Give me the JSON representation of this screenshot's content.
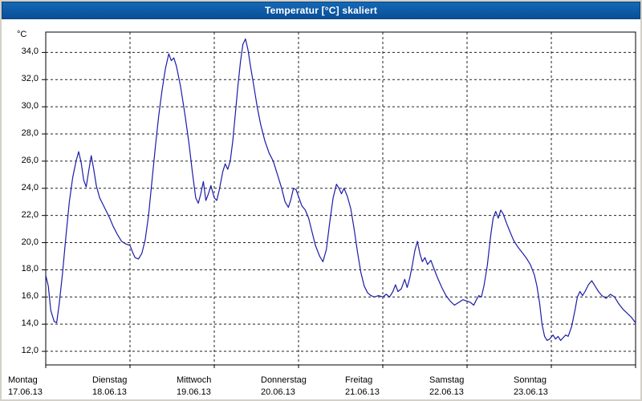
{
  "window": {
    "title": "Temperatur [°C] skaliert"
  },
  "colors": {
    "titlebar": "#0d5aa7",
    "titlebar_text": "#ffffff",
    "panel": "#ffffff",
    "frame": "#d4d0c8",
    "grid": "#222222",
    "axis": "#000000",
    "line": "#1c1ca8"
  },
  "chart_data": {
    "type": "line",
    "title": "Temperatur [°C] skaliert",
    "ylabel": "°C",
    "xlabel": "",
    "grid": "dashed",
    "legend": "none",
    "ylim": [
      11.0,
      35.5
    ],
    "y_ticks": [
      34,
      32,
      30,
      28,
      26,
      24,
      22,
      20,
      18,
      16,
      14,
      12
    ],
    "y_tick_labels": [
      "34,0",
      "32,0",
      "30,0",
      "28,0",
      "26,0",
      "24,0",
      "22,0",
      "20,0",
      "18,0",
      "16,0",
      "14,0",
      "12,0"
    ],
    "x_range_days": 7,
    "x_days": [
      {
        "name": "Montag",
        "date": "17.06.13"
      },
      {
        "name": "Dienstag",
        "date": "18.06.13"
      },
      {
        "name": "Mittwoch",
        "date": "19.06.13"
      },
      {
        "name": "Donnerstag",
        "date": "20.06.13"
      },
      {
        "name": "Freitag",
        "date": "21.06.13"
      },
      {
        "name": "Samstag",
        "date": "22.06.13"
      },
      {
        "name": "Sonntag",
        "date": "23.06.13"
      }
    ],
    "series": [
      {
        "name": "Temperatur",
        "unit": "°C",
        "color": "#1c1ca8",
        "points": [
          [
            0.0,
            17.6
          ],
          [
            0.03,
            16.8
          ],
          [
            0.06,
            15.0
          ],
          [
            0.1,
            14.2
          ],
          [
            0.13,
            14.1
          ],
          [
            0.16,
            15.5
          ],
          [
            0.2,
            17.8
          ],
          [
            0.24,
            20.5
          ],
          [
            0.28,
            23.0
          ],
          [
            0.32,
            24.8
          ],
          [
            0.36,
            26.0
          ],
          [
            0.39,
            26.7
          ],
          [
            0.42,
            25.9
          ],
          [
            0.45,
            24.6
          ],
          [
            0.48,
            24.1
          ],
          [
            0.51,
            25.3
          ],
          [
            0.54,
            26.4
          ],
          [
            0.57,
            25.4
          ],
          [
            0.6,
            24.2
          ],
          [
            0.64,
            23.3
          ],
          [
            0.68,
            22.8
          ],
          [
            0.72,
            22.3
          ],
          [
            0.76,
            21.8
          ],
          [
            0.8,
            21.2
          ],
          [
            0.85,
            20.6
          ],
          [
            0.9,
            20.1
          ],
          [
            0.95,
            19.9
          ],
          [
            1.0,
            19.8
          ],
          [
            1.03,
            19.3
          ],
          [
            1.06,
            18.9
          ],
          [
            1.1,
            18.8
          ],
          [
            1.14,
            19.2
          ],
          [
            1.18,
            20.2
          ],
          [
            1.22,
            22.0
          ],
          [
            1.26,
            24.5
          ],
          [
            1.3,
            27.0
          ],
          [
            1.34,
            29.3
          ],
          [
            1.38,
            31.2
          ],
          [
            1.42,
            32.8
          ],
          [
            1.46,
            33.9
          ],
          [
            1.49,
            33.4
          ],
          [
            1.52,
            33.6
          ],
          [
            1.55,
            33.0
          ],
          [
            1.6,
            31.5
          ],
          [
            1.65,
            29.5
          ],
          [
            1.7,
            27.3
          ],
          [
            1.74,
            25.2
          ],
          [
            1.78,
            23.3
          ],
          [
            1.81,
            22.9
          ],
          [
            1.84,
            23.6
          ],
          [
            1.87,
            24.5
          ],
          [
            1.9,
            23.1
          ],
          [
            1.93,
            23.6
          ],
          [
            1.96,
            24.2
          ],
          [
            2.0,
            23.3
          ],
          [
            2.03,
            23.1
          ],
          [
            2.06,
            23.9
          ],
          [
            2.1,
            25.2
          ],
          [
            2.13,
            25.8
          ],
          [
            2.16,
            25.4
          ],
          [
            2.19,
            26.0
          ],
          [
            2.22,
            27.5
          ],
          [
            2.25,
            29.5
          ],
          [
            2.28,
            31.5
          ],
          [
            2.31,
            33.3
          ],
          [
            2.34,
            34.6
          ],
          [
            2.37,
            35.0
          ],
          [
            2.4,
            34.2
          ],
          [
            2.43,
            33.0
          ],
          [
            2.47,
            31.5
          ],
          [
            2.51,
            30.0
          ],
          [
            2.55,
            28.7
          ],
          [
            2.6,
            27.5
          ],
          [
            2.65,
            26.6
          ],
          [
            2.7,
            26.0
          ],
          [
            2.75,
            25.0
          ],
          [
            2.8,
            24.0
          ],
          [
            2.84,
            23.0
          ],
          [
            2.88,
            22.6
          ],
          [
            2.91,
            23.2
          ],
          [
            2.94,
            24.0
          ],
          [
            2.97,
            23.9
          ],
          [
            3.0,
            23.4
          ],
          [
            3.04,
            22.7
          ],
          [
            3.08,
            22.4
          ],
          [
            3.12,
            21.8
          ],
          [
            3.16,
            20.8
          ],
          [
            3.2,
            19.8
          ],
          [
            3.25,
            19.0
          ],
          [
            3.29,
            18.6
          ],
          [
            3.33,
            19.5
          ],
          [
            3.37,
            21.5
          ],
          [
            3.41,
            23.3
          ],
          [
            3.45,
            24.3
          ],
          [
            3.48,
            24.0
          ],
          [
            3.51,
            23.6
          ],
          [
            3.54,
            24.0
          ],
          [
            3.58,
            23.4
          ],
          [
            3.62,
            22.5
          ],
          [
            3.66,
            21.0
          ],
          [
            3.7,
            19.3
          ],
          [
            3.74,
            17.8
          ],
          [
            3.78,
            16.8
          ],
          [
            3.82,
            16.3
          ],
          [
            3.86,
            16.1
          ],
          [
            3.9,
            16.0
          ],
          [
            3.95,
            16.1
          ],
          [
            4.0,
            16.0
          ],
          [
            4.04,
            16.2
          ],
          [
            4.08,
            16.0
          ],
          [
            4.12,
            16.4
          ],
          [
            4.15,
            16.9
          ],
          [
            4.18,
            16.4
          ],
          [
            4.22,
            16.6
          ],
          [
            4.26,
            17.3
          ],
          [
            4.29,
            16.7
          ],
          [
            4.32,
            17.4
          ],
          [
            4.35,
            18.3
          ],
          [
            4.38,
            19.4
          ],
          [
            4.41,
            20.1
          ],
          [
            4.44,
            19.2
          ],
          [
            4.47,
            18.6
          ],
          [
            4.5,
            18.9
          ],
          [
            4.53,
            18.4
          ],
          [
            4.57,
            18.7
          ],
          [
            4.6,
            18.2
          ],
          [
            4.65,
            17.4
          ],
          [
            4.7,
            16.7
          ],
          [
            4.75,
            16.1
          ],
          [
            4.8,
            15.7
          ],
          [
            4.85,
            15.4
          ],
          [
            4.9,
            15.6
          ],
          [
            4.95,
            15.8
          ],
          [
            5.0,
            15.7
          ],
          [
            5.04,
            15.6
          ],
          [
            5.08,
            15.4
          ],
          [
            5.11,
            15.8
          ],
          [
            5.14,
            16.1
          ],
          [
            5.17,
            16.0
          ],
          [
            5.2,
            16.8
          ],
          [
            5.24,
            18.3
          ],
          [
            5.28,
            20.5
          ],
          [
            5.31,
            21.8
          ],
          [
            5.34,
            22.3
          ],
          [
            5.37,
            21.8
          ],
          [
            5.4,
            22.4
          ],
          [
            5.43,
            22.1
          ],
          [
            5.47,
            21.4
          ],
          [
            5.51,
            20.8
          ],
          [
            5.55,
            20.2
          ],
          [
            5.6,
            19.7
          ],
          [
            5.65,
            19.3
          ],
          [
            5.7,
            18.9
          ],
          [
            5.75,
            18.4
          ],
          [
            5.8,
            17.6
          ],
          [
            5.83,
            16.8
          ],
          [
            5.86,
            15.6
          ],
          [
            5.89,
            14.0
          ],
          [
            5.92,
            13.1
          ],
          [
            5.95,
            12.8
          ],
          [
            5.98,
            12.9
          ],
          [
            6.02,
            13.2
          ],
          [
            6.05,
            12.9
          ],
          [
            6.08,
            13.1
          ],
          [
            6.11,
            12.8
          ],
          [
            6.14,
            13.0
          ],
          [
            6.17,
            13.2
          ],
          [
            6.2,
            13.1
          ],
          [
            6.24,
            13.8
          ],
          [
            6.28,
            15.0
          ],
          [
            6.31,
            16.0
          ],
          [
            6.34,
            16.4
          ],
          [
            6.37,
            16.1
          ],
          [
            6.4,
            16.4
          ],
          [
            6.44,
            16.9
          ],
          [
            6.48,
            17.2
          ],
          [
            6.52,
            16.8
          ],
          [
            6.56,
            16.4
          ],
          [
            6.6,
            16.1
          ],
          [
            6.65,
            15.9
          ],
          [
            6.7,
            16.2
          ],
          [
            6.75,
            16.0
          ],
          [
            6.8,
            15.5
          ],
          [
            6.85,
            15.1
          ],
          [
            6.9,
            14.8
          ],
          [
            6.95,
            14.5
          ],
          [
            7.0,
            14.1
          ]
        ]
      }
    ]
  }
}
